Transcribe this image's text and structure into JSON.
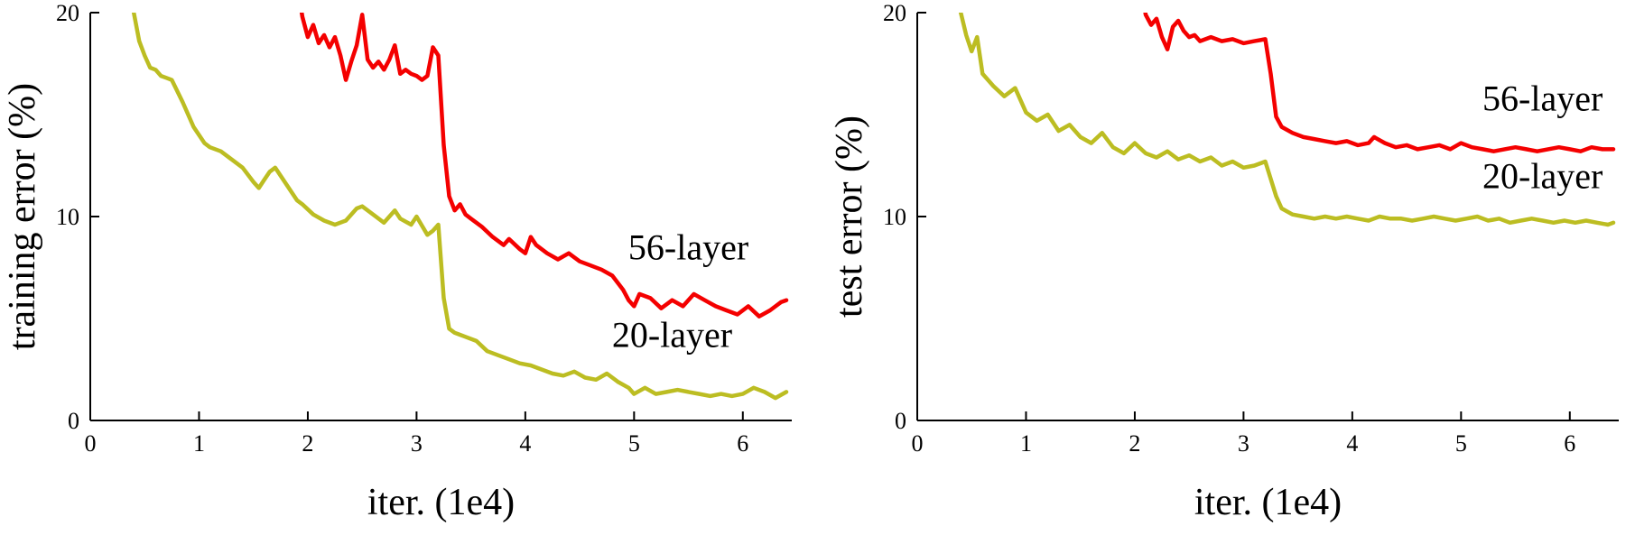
{
  "figure": {
    "background": "#ffffff",
    "text_color": "#000000",
    "axis_color": "#000000",
    "series_colors": {
      "56-layer": "#f40000",
      "20-layer": "#bcbd22"
    }
  },
  "chart_data": [
    {
      "id": "training-error",
      "type": "line",
      "title": "",
      "xlabel": "iter. (1e4)",
      "ylabel": "training error (%)",
      "xlim": [
        0,
        6.45
      ],
      "ylim": [
        0,
        20
      ],
      "xticks": [
        0,
        1,
        2,
        3,
        4,
        5,
        6
      ],
      "yticks": [
        0,
        10,
        20
      ],
      "grid": false,
      "legend_position": "inline-annotations",
      "series": [
        {
          "name": "20-layer",
          "color": "#bcbd22",
          "points": [
            [
              0.35,
              21.5
            ],
            [
              0.4,
              20.0
            ],
            [
              0.45,
              18.6
            ],
            [
              0.5,
              17.9
            ],
            [
              0.55,
              17.3
            ],
            [
              0.6,
              17.2
            ],
            [
              0.65,
              16.9
            ],
            [
              0.7,
              16.8
            ],
            [
              0.75,
              16.7
            ],
            [
              0.85,
              15.6
            ],
            [
              0.95,
              14.4
            ],
            [
              1.05,
              13.6
            ],
            [
              1.1,
              13.4
            ],
            [
              1.2,
              13.2
            ],
            [
              1.3,
              12.8
            ],
            [
              1.4,
              12.4
            ],
            [
              1.5,
              11.7
            ],
            [
              1.55,
              11.4
            ],
            [
              1.6,
              11.8
            ],
            [
              1.65,
              12.2
            ],
            [
              1.7,
              12.4
            ],
            [
              1.8,
              11.6
            ],
            [
              1.9,
              10.8
            ],
            [
              1.95,
              10.6
            ],
            [
              2.05,
              10.1
            ],
            [
              2.15,
              9.8
            ],
            [
              2.25,
              9.6
            ],
            [
              2.35,
              9.8
            ],
            [
              2.45,
              10.4
            ],
            [
              2.5,
              10.5
            ],
            [
              2.6,
              10.1
            ],
            [
              2.7,
              9.7
            ],
            [
              2.8,
              10.3
            ],
            [
              2.85,
              9.9
            ],
            [
              2.95,
              9.6
            ],
            [
              3.0,
              10.0
            ],
            [
              3.1,
              9.1
            ],
            [
              3.15,
              9.3
            ],
            [
              3.2,
              9.6
            ],
            [
              3.25,
              6.0
            ],
            [
              3.3,
              4.5
            ],
            [
              3.35,
              4.3
            ],
            [
              3.45,
              4.1
            ],
            [
              3.55,
              3.9
            ],
            [
              3.65,
              3.4
            ],
            [
              3.75,
              3.2
            ],
            [
              3.85,
              3.0
            ],
            [
              3.95,
              2.8
            ],
            [
              4.05,
              2.7
            ],
            [
              4.15,
              2.5
            ],
            [
              4.25,
              2.3
            ],
            [
              4.35,
              2.2
            ],
            [
              4.45,
              2.4
            ],
            [
              4.55,
              2.1
            ],
            [
              4.65,
              2.0
            ],
            [
              4.75,
              2.3
            ],
            [
              4.85,
              1.9
            ],
            [
              4.95,
              1.6
            ],
            [
              5.0,
              1.3
            ],
            [
              5.1,
              1.6
            ],
            [
              5.2,
              1.3
            ],
            [
              5.3,
              1.4
            ],
            [
              5.4,
              1.5
            ],
            [
              5.5,
              1.4
            ],
            [
              5.6,
              1.3
            ],
            [
              5.7,
              1.2
            ],
            [
              5.8,
              1.3
            ],
            [
              5.9,
              1.2
            ],
            [
              6.0,
              1.3
            ],
            [
              6.1,
              1.6
            ],
            [
              6.2,
              1.4
            ],
            [
              6.3,
              1.1
            ],
            [
              6.4,
              1.4
            ]
          ]
        },
        {
          "name": "56-layer",
          "color": "#f40000",
          "points": [
            [
              1.9,
              21.5
            ],
            [
              1.95,
              19.8
            ],
            [
              2.0,
              18.8
            ],
            [
              2.05,
              19.4
            ],
            [
              2.1,
              18.5
            ],
            [
              2.15,
              18.9
            ],
            [
              2.2,
              18.3
            ],
            [
              2.25,
              18.8
            ],
            [
              2.3,
              17.9
            ],
            [
              2.35,
              16.7
            ],
            [
              2.4,
              17.6
            ],
            [
              2.45,
              18.4
            ],
            [
              2.5,
              19.9
            ],
            [
              2.55,
              17.7
            ],
            [
              2.6,
              17.3
            ],
            [
              2.65,
              17.6
            ],
            [
              2.7,
              17.2
            ],
            [
              2.75,
              17.7
            ],
            [
              2.8,
              18.4
            ],
            [
              2.85,
              17.0
            ],
            [
              2.9,
              17.2
            ],
            [
              2.95,
              17.0
            ],
            [
              3.0,
              16.9
            ],
            [
              3.05,
              16.7
            ],
            [
              3.1,
              16.9
            ],
            [
              3.15,
              18.3
            ],
            [
              3.2,
              17.9
            ],
            [
              3.25,
              13.5
            ],
            [
              3.3,
              11.0
            ],
            [
              3.35,
              10.3
            ],
            [
              3.4,
              10.6
            ],
            [
              3.45,
              10.1
            ],
            [
              3.5,
              9.9
            ],
            [
              3.6,
              9.5
            ],
            [
              3.7,
              9.0
            ],
            [
              3.8,
              8.6
            ],
            [
              3.85,
              8.9
            ],
            [
              3.95,
              8.4
            ],
            [
              4.0,
              8.2
            ],
            [
              4.05,
              9.0
            ],
            [
              4.1,
              8.6
            ],
            [
              4.2,
              8.2
            ],
            [
              4.3,
              7.9
            ],
            [
              4.4,
              8.2
            ],
            [
              4.5,
              7.8
            ],
            [
              4.6,
              7.6
            ],
            [
              4.7,
              7.4
            ],
            [
              4.8,
              7.1
            ],
            [
              4.9,
              6.4
            ],
            [
              4.95,
              5.9
            ],
            [
              5.0,
              5.6
            ],
            [
              5.05,
              6.2
            ],
            [
              5.15,
              6.0
            ],
            [
              5.25,
              5.5
            ],
            [
              5.35,
              5.9
            ],
            [
              5.45,
              5.6
            ],
            [
              5.55,
              6.2
            ],
            [
              5.65,
              5.9
            ],
            [
              5.75,
              5.6
            ],
            [
              5.85,
              5.4
            ],
            [
              5.95,
              5.2
            ],
            [
              6.05,
              5.6
            ],
            [
              6.15,
              5.1
            ],
            [
              6.25,
              5.4
            ],
            [
              6.35,
              5.8
            ],
            [
              6.4,
              5.9
            ]
          ]
        }
      ],
      "annotations": [
        {
          "text": "56-layer",
          "x": 5.5,
          "y": 7.9
        },
        {
          "text": "20-layer",
          "x": 5.35,
          "y": 3.6
        }
      ]
    },
    {
      "id": "test-error",
      "type": "line",
      "title": "",
      "xlabel": "iter. (1e4)",
      "ylabel": "test error (%)",
      "xlim": [
        0,
        6.45
      ],
      "ylim": [
        0,
        20
      ],
      "xticks": [
        0,
        1,
        2,
        3,
        4,
        5,
        6
      ],
      "yticks": [
        0,
        10,
        20
      ],
      "grid": false,
      "legend_position": "inline-annotations",
      "series": [
        {
          "name": "20-layer",
          "color": "#bcbd22",
          "points": [
            [
              0.35,
              21.5
            ],
            [
              0.4,
              20.0
            ],
            [
              0.45,
              18.9
            ],
            [
              0.5,
              18.1
            ],
            [
              0.55,
              18.8
            ],
            [
              0.6,
              17.0
            ],
            [
              0.7,
              16.4
            ],
            [
              0.8,
              15.9
            ],
            [
              0.9,
              16.3
            ],
            [
              1.0,
              15.1
            ],
            [
              1.1,
              14.7
            ],
            [
              1.2,
              15.0
            ],
            [
              1.3,
              14.2
            ],
            [
              1.4,
              14.5
            ],
            [
              1.5,
              13.9
            ],
            [
              1.6,
              13.6
            ],
            [
              1.7,
              14.1
            ],
            [
              1.8,
              13.4
            ],
            [
              1.9,
              13.1
            ],
            [
              2.0,
              13.6
            ],
            [
              2.1,
              13.1
            ],
            [
              2.2,
              12.9
            ],
            [
              2.3,
              13.2
            ],
            [
              2.4,
              12.8
            ],
            [
              2.5,
              13.0
            ],
            [
              2.6,
              12.7
            ],
            [
              2.7,
              12.9
            ],
            [
              2.8,
              12.5
            ],
            [
              2.9,
              12.7
            ],
            [
              3.0,
              12.4
            ],
            [
              3.1,
              12.5
            ],
            [
              3.2,
              12.7
            ],
            [
              3.3,
              11.0
            ],
            [
              3.35,
              10.4
            ],
            [
              3.45,
              10.1
            ],
            [
              3.55,
              10.0
            ],
            [
              3.65,
              9.9
            ],
            [
              3.75,
              10.0
            ],
            [
              3.85,
              9.9
            ],
            [
              3.95,
              10.0
            ],
            [
              4.05,
              9.9
            ],
            [
              4.15,
              9.8
            ],
            [
              4.25,
              10.0
            ],
            [
              4.35,
              9.9
            ],
            [
              4.45,
              9.9
            ],
            [
              4.55,
              9.8
            ],
            [
              4.65,
              9.9
            ],
            [
              4.75,
              10.0
            ],
            [
              4.85,
              9.9
            ],
            [
              4.95,
              9.8
            ],
            [
              5.05,
              9.9
            ],
            [
              5.15,
              10.0
            ],
            [
              5.25,
              9.8
            ],
            [
              5.35,
              9.9
            ],
            [
              5.45,
              9.7
            ],
            [
              5.55,
              9.8
            ],
            [
              5.65,
              9.9
            ],
            [
              5.75,
              9.8
            ],
            [
              5.85,
              9.7
            ],
            [
              5.95,
              9.8
            ],
            [
              6.05,
              9.7
            ],
            [
              6.15,
              9.8
            ],
            [
              6.25,
              9.7
            ],
            [
              6.35,
              9.6
            ],
            [
              6.4,
              9.7
            ]
          ]
        },
        {
          "name": "56-layer",
          "color": "#f40000",
          "points": [
            [
              2.05,
              21.5
            ],
            [
              2.1,
              19.9
            ],
            [
              2.15,
              19.4
            ],
            [
              2.2,
              19.7
            ],
            [
              2.25,
              18.8
            ],
            [
              2.3,
              18.2
            ],
            [
              2.35,
              19.3
            ],
            [
              2.4,
              19.6
            ],
            [
              2.45,
              19.1
            ],
            [
              2.5,
              18.8
            ],
            [
              2.55,
              18.9
            ],
            [
              2.6,
              18.6
            ],
            [
              2.7,
              18.8
            ],
            [
              2.8,
              18.6
            ],
            [
              2.9,
              18.7
            ],
            [
              3.0,
              18.5
            ],
            [
              3.1,
              18.6
            ],
            [
              3.2,
              18.7
            ],
            [
              3.25,
              17.0
            ],
            [
              3.3,
              14.9
            ],
            [
              3.35,
              14.4
            ],
            [
              3.45,
              14.1
            ],
            [
              3.55,
              13.9
            ],
            [
              3.65,
              13.8
            ],
            [
              3.75,
              13.7
            ],
            [
              3.85,
              13.6
            ],
            [
              3.95,
              13.7
            ],
            [
              4.05,
              13.5
            ],
            [
              4.15,
              13.6
            ],
            [
              4.2,
              13.9
            ],
            [
              4.3,
              13.6
            ],
            [
              4.4,
              13.4
            ],
            [
              4.5,
              13.5
            ],
            [
              4.6,
              13.3
            ],
            [
              4.7,
              13.4
            ],
            [
              4.8,
              13.5
            ],
            [
              4.9,
              13.3
            ],
            [
              5.0,
              13.6
            ],
            [
              5.1,
              13.4
            ],
            [
              5.2,
              13.3
            ],
            [
              5.3,
              13.2
            ],
            [
              5.4,
              13.3
            ],
            [
              5.5,
              13.4
            ],
            [
              5.6,
              13.3
            ],
            [
              5.7,
              13.2
            ],
            [
              5.8,
              13.3
            ],
            [
              5.9,
              13.4
            ],
            [
              6.0,
              13.3
            ],
            [
              6.1,
              13.2
            ],
            [
              6.2,
              13.4
            ],
            [
              6.3,
              13.3
            ],
            [
              6.4,
              13.3
            ]
          ]
        }
      ],
      "annotations": [
        {
          "text": "56-layer",
          "x": 5.75,
          "y": 15.2
        },
        {
          "text": "20-layer",
          "x": 5.75,
          "y": 11.4
        }
      ]
    }
  ]
}
